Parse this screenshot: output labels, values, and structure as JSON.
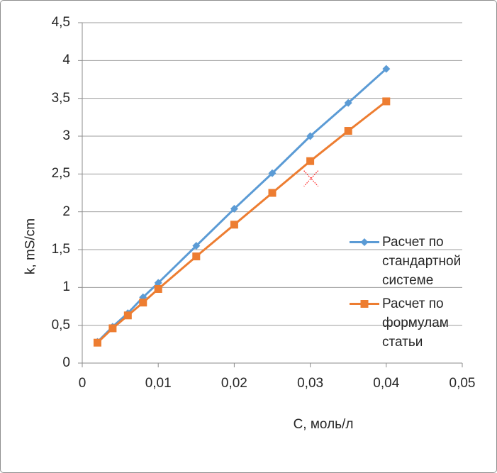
{
  "chart_data": {
    "type": "line",
    "x": [
      0.002,
      0.004,
      0.006,
      0.008,
      0.01,
      0.015,
      0.02,
      0.025,
      0.03,
      0.035,
      0.04
    ],
    "series": [
      {
        "name": "Расчет по стандартной системе",
        "name_lines": [
          "Расчет по",
          "стандартной",
          "системе"
        ],
        "color": "#5B9BD5",
        "marker": "diamond",
        "values": [
          0.28,
          0.48,
          0.66,
          0.87,
          1.06,
          1.55,
          2.04,
          2.51,
          3.0,
          3.44,
          3.89
        ]
      },
      {
        "name": "Расчет по формулам статьи",
        "name_lines": [
          "Расчет по",
          "формулам",
          "статьи"
        ],
        "color": "#ED7D31",
        "marker": "square",
        "values": [
          0.27,
          0.46,
          0.63,
          0.8,
          0.98,
          1.41,
          1.83,
          2.25,
          2.67,
          3.07,
          3.46
        ]
      }
    ],
    "annotation": {
      "type": "x-marker",
      "x": 0.0301,
      "y": 2.44,
      "color": "#FF2B2B"
    },
    "title": "",
    "xlabel": "C, моль/л",
    "ylabel": "k, mS/cm",
    "xlim": [
      0,
      0.05
    ],
    "ylim": [
      0,
      4.5
    ],
    "x_ticks": [
      "0",
      "0,01",
      "0,02",
      "0,03",
      "0,04",
      "0,05"
    ],
    "x_tick_values": [
      0,
      0.01,
      0.02,
      0.03,
      0.04,
      0.05
    ],
    "y_ticks": [
      "0",
      "0,5",
      "1",
      "1,5",
      "2",
      "2,5",
      "3",
      "3,5",
      "4",
      "4,5"
    ],
    "y_tick_values": [
      0,
      0.5,
      1,
      1.5,
      2,
      2.5,
      3,
      3.5,
      4,
      4.5
    ],
    "grid": "horizontal-only",
    "legend_position": "right",
    "colors": {
      "grid": "#9d9d9d",
      "axis": "#8b8b8b",
      "text": "#262626",
      "frame_border": "#8f8f8f",
      "background": "#ffffff"
    }
  }
}
